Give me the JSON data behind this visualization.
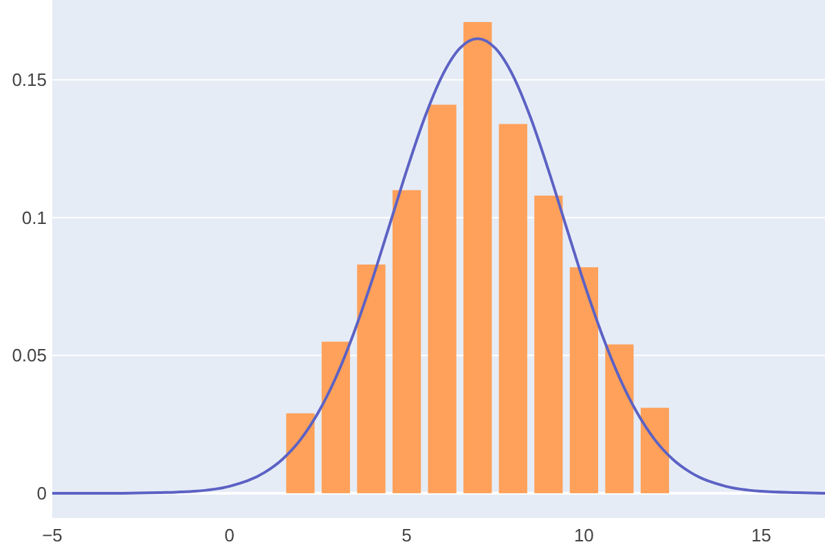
{
  "chart_data": {
    "type": "histogram",
    "xlim": [
      -5,
      16.8
    ],
    "ylim": [
      -0.009,
      0.179
    ],
    "xticks": [
      {
        "value": -5,
        "label": "−5"
      },
      0,
      5,
      10,
      15
    ],
    "yticks": [
      0,
      0.05,
      0.1,
      0.15
    ],
    "grid": "y",
    "series": [
      {
        "color": "#ffa15a",
        "bins": [
          1.5,
          2.5,
          3.5,
          4.5,
          5.5,
          6.5,
          7.5,
          8.5,
          9.5,
          10.5,
          11.5,
          12.5
        ],
        "values": [
          0.029,
          0.055,
          0.083,
          0.11,
          0.141,
          0.171,
          0.134,
          0.108,
          0.082,
          0.054,
          0.031
        ]
      },
      {
        "type": "line",
        "color": "#5c62c4",
        "x": [
          -5,
          -3,
          -2,
          -1,
          0,
          1,
          1.5,
          2,
          2.5,
          3,
          3.5,
          4,
          4.5,
          5,
          5.5,
          6,
          6.5,
          7,
          7.5,
          8,
          8.5,
          9,
          9.5,
          10,
          10.5,
          11,
          11.5,
          12,
          12.5,
          13,
          14,
          15,
          16,
          16.8
        ],
        "values": [
          0,
          0,
          0.0002,
          0.0007,
          0.0025,
          0.0076,
          0.0124,
          0.0194,
          0.0292,
          0.042,
          0.0579,
          0.0764,
          0.0967,
          0.1172,
          0.1361,
          0.1515,
          0.1615,
          0.165,
          0.1615,
          0.1515,
          0.1361,
          0.1172,
          0.0967,
          0.0764,
          0.0579,
          0.042,
          0.0292,
          0.0194,
          0.0124,
          0.0076,
          0.0025,
          0.0007,
          0.0002,
          0
        ]
      }
    ]
  }
}
